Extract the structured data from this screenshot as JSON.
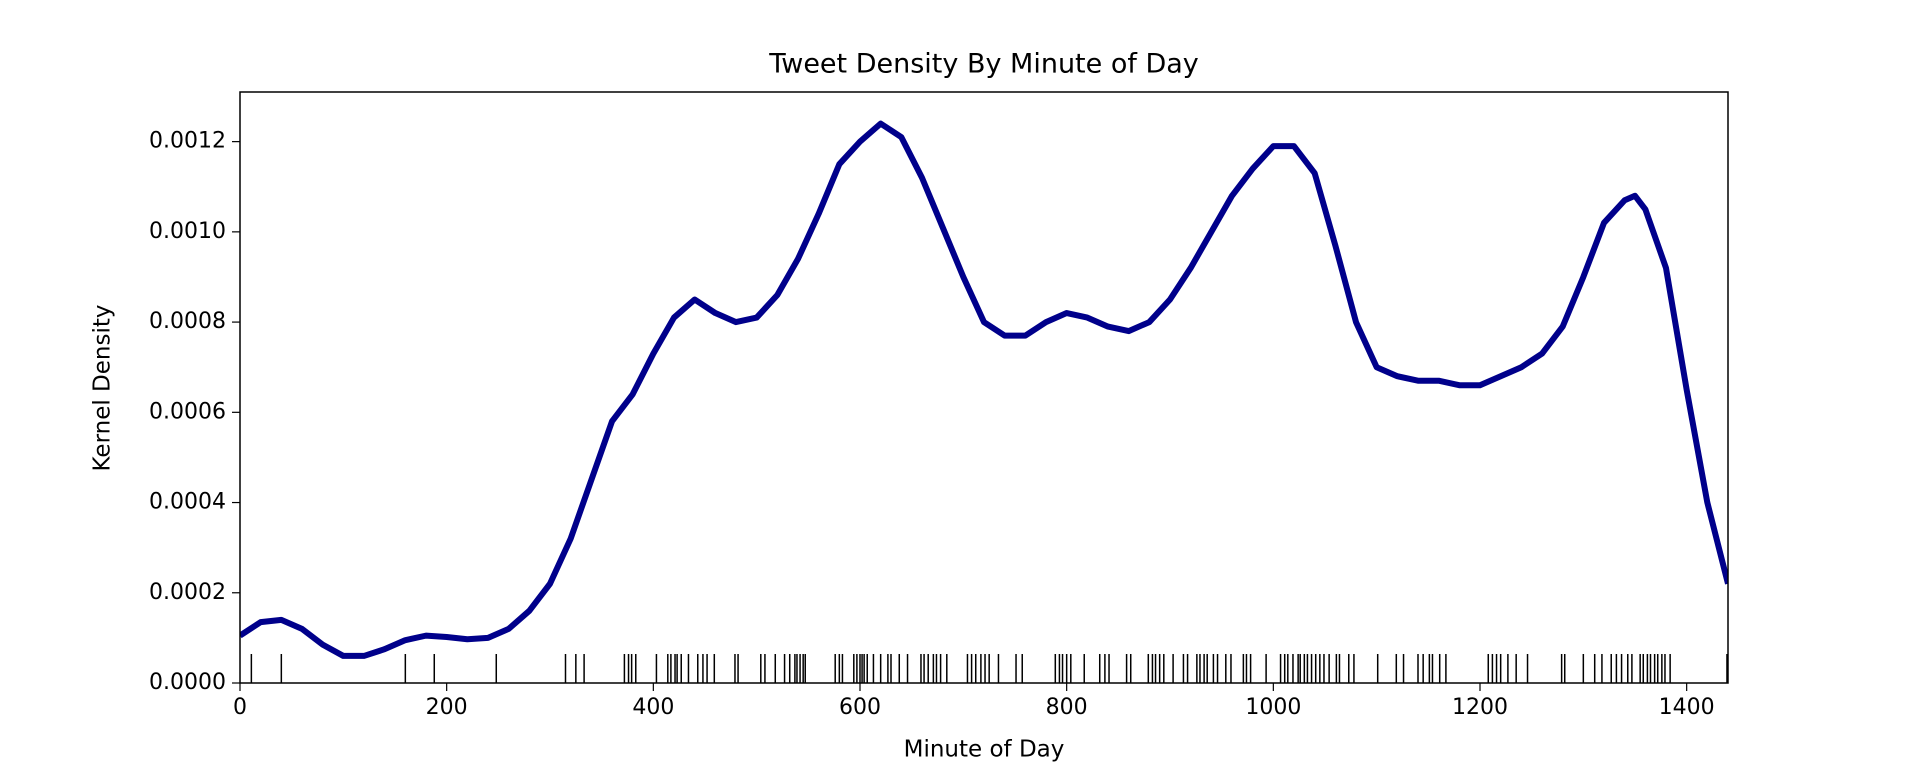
{
  "chart_data": {
    "type": "line",
    "title": "Tweet Density By Minute of Day",
    "x_label": "Minute of Day",
    "y_label": "Kernel Density",
    "x": [
      0,
      20,
      40,
      60,
      80,
      100,
      120,
      140,
      160,
      180,
      200,
      220,
      240,
      260,
      280,
      300,
      320,
      340,
      360,
      380,
      400,
      420,
      440,
      460,
      480,
      500,
      520,
      540,
      560,
      580,
      600,
      620,
      640,
      660,
      680,
      700,
      720,
      740,
      760,
      780,
      800,
      820,
      840,
      860,
      880,
      900,
      920,
      940,
      960,
      980,
      1000,
      1020,
      1040,
      1060,
      1080,
      1100,
      1120,
      1140,
      1160,
      1180,
      1200,
      1220,
      1240,
      1260,
      1280,
      1300,
      1320,
      1340,
      1350,
      1360,
      1380,
      1400,
      1420,
      1440
    ],
    "values": [
      0.000105,
      0.000135,
      0.00014,
      0.00012,
      8.5e-05,
      6e-05,
      6e-05,
      7.5e-05,
      9.5e-05,
      0.000105,
      0.000102,
      9.7e-05,
      0.0001,
      0.00012,
      0.00016,
      0.00022,
      0.00032,
      0.00045,
      0.00058,
      0.00064,
      0.00073,
      0.00081,
      0.00085,
      0.00082,
      0.0008,
      0.00081,
      0.00086,
      0.00094,
      0.00104,
      0.00115,
      0.0012,
      0.00124,
      0.00121,
      0.00112,
      0.00101,
      0.0009,
      0.0008,
      0.00077,
      0.00077,
      0.0008,
      0.00082,
      0.00081,
      0.00079,
      0.00078,
      0.0008,
      0.00085,
      0.00092,
      0.001,
      0.00108,
      0.00114,
      0.00119,
      0.00119,
      0.00113,
      0.00097,
      0.0008,
      0.0007,
      0.00068,
      0.00067,
      0.00067,
      0.00066,
      0.00066,
      0.00068,
      0.0007,
      0.00073,
      0.00079,
      0.0009,
      0.00102,
      0.00107,
      0.00108,
      0.00105,
      0.00092,
      0.00065,
      0.0004,
      0.00022
    ],
    "color": "#00008b",
    "rug": [
      11,
      40,
      160,
      188,
      248,
      315,
      325,
      333,
      372,
      376,
      379,
      383,
      403,
      414,
      417,
      421,
      423,
      427,
      434,
      443,
      448,
      452,
      459,
      479,
      482,
      504,
      508,
      518,
      527,
      532,
      537,
      539,
      542,
      545,
      547,
      576,
      580,
      583,
      594,
      597,
      600,
      602,
      604,
      607,
      613,
      620,
      627,
      630,
      638,
      646,
      659,
      662,
      666,
      671,
      674,
      678,
      684,
      704,
      708,
      712,
      717,
      721,
      725,
      734,
      751,
      757,
      789,
      793,
      796,
      800,
      804,
      817,
      832,
      837,
      841,
      858,
      862,
      879,
      883,
      886,
      890,
      894,
      903,
      913,
      917,
      926,
      929,
      933,
      936,
      942,
      946,
      954,
      959,
      971,
      974,
      978,
      993,
      1007,
      1011,
      1014,
      1019,
      1024,
      1026,
      1030,
      1033,
      1037,
      1041,
      1045,
      1049,
      1054,
      1061,
      1064,
      1073,
      1078,
      1101,
      1119,
      1126,
      1140,
      1145,
      1151,
      1154,
      1161,
      1167,
      1208,
      1212,
      1216,
      1220,
      1227,
      1235,
      1246,
      1279,
      1282,
      1300,
      1311,
      1318,
      1327,
      1332,
      1337,
      1343,
      1347,
      1355,
      1358,
      1362,
      1365,
      1369,
      1372,
      1376,
      1379,
      1384,
      1439
    ],
    "rug_color": "#000000",
    "xlim": [
      0,
      1440
    ],
    "ylim": [
      0,
      0.00131
    ],
    "xticks": [
      0,
      200,
      400,
      600,
      800,
      1000,
      1200,
      1400
    ],
    "yticks": [
      {
        "value": 0,
        "label": "0.0000"
      },
      {
        "value": 0.0002,
        "label": "0.0002"
      },
      {
        "value": 0.0004,
        "label": "0.0004"
      },
      {
        "value": 0.0006,
        "label": "0.0006"
      },
      {
        "value": 0.0008,
        "label": "0.0008"
      },
      {
        "value": 0.001,
        "label": "0.0010"
      },
      {
        "value": 0.0012,
        "label": "0.0012"
      }
    ]
  }
}
